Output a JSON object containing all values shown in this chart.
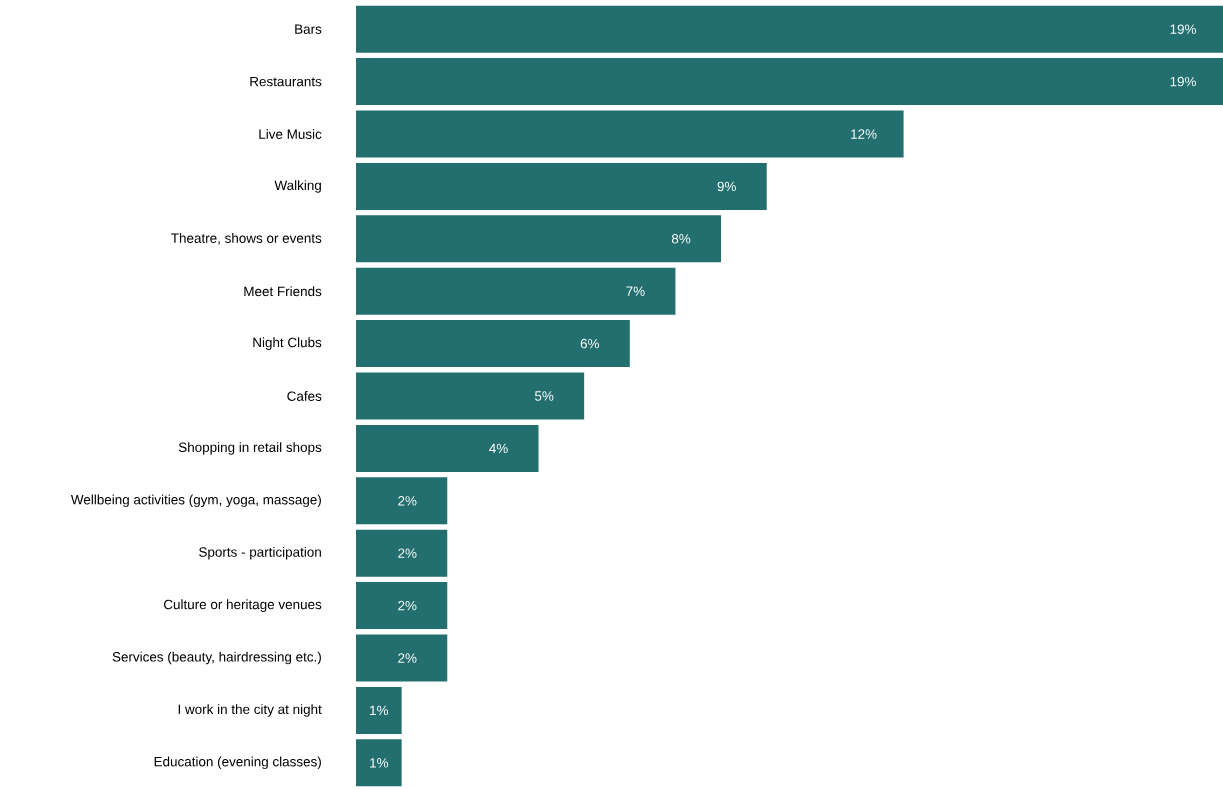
{
  "chart_data": {
    "type": "bar",
    "orientation": "horizontal",
    "color": "#236e6e",
    "categories": [
      "Bars",
      "Restaurants",
      "Live Music",
      "Walking",
      "Theatre, shows or events",
      "Meet Friends",
      "Night Clubs",
      "Cafes",
      "Shopping in retail shops",
      "Wellbeing activities (gym, yoga, massage)",
      "Sports - participation",
      "Culture or heritage venues",
      "Services (beauty, hairdressing etc.)",
      "I work in the city at night",
      "Education (evening classes)"
    ],
    "values": [
      19,
      19,
      12,
      9,
      8,
      7,
      6,
      5,
      4,
      2,
      2,
      2,
      2,
      1,
      1
    ],
    "value_labels": [
      "19%",
      "19%",
      "12%",
      "9%",
      "8%",
      "7%",
      "6%",
      "5%",
      "4%",
      "2%",
      "2%",
      "2%",
      "2%",
      "1%",
      "1%"
    ]
  }
}
